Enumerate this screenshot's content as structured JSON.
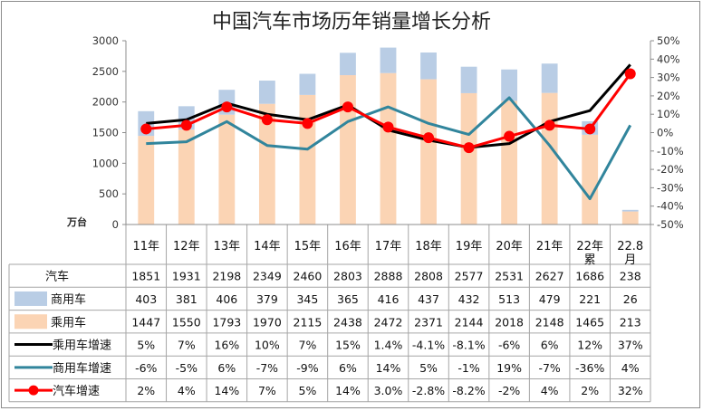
{
  "title": "中国汽车市场历年销量增长分析",
  "unit_label": "万台",
  "colors": {
    "commercial_bar": "#b9cde5",
    "passenger_bar": "#fbd4b4",
    "passenger_growth": "#000000",
    "commercial_growth": "#31859c",
    "total_growth": "#ff0000",
    "grid_lines": "#a6a6a6"
  },
  "chart_data": {
    "type": "bar",
    "title": "中国汽车市场历年销量增长分析",
    "categories": [
      "11年",
      "12年",
      "13年",
      "14年",
      "15年",
      "16年",
      "17年",
      "18年",
      "19年",
      "20年",
      "21年",
      "22年累",
      "22.8月"
    ],
    "left_axis": {
      "unit": "万台",
      "ylim": [
        0,
        3000
      ],
      "ticks": [
        "3000",
        "2500",
        "2000",
        "1500",
        "1000",
        "500",
        "0"
      ]
    },
    "right_axis": {
      "ylim": [
        -50,
        50
      ],
      "ticks": [
        "50%",
        "40%",
        "30%",
        "20%",
        "10%",
        "0%",
        "-10%",
        "-20%",
        "-30%",
        "-40%",
        "-50%"
      ]
    },
    "bar_series": [
      {
        "name": "乘用车",
        "color": "#fbd4b4",
        "values": [
          1447,
          1550,
          1793,
          1970,
          2115,
          2438,
          2472,
          2371,
          2144,
          2018,
          2148,
          1465,
          213
        ]
      },
      {
        "name": "商用车",
        "color": "#b9cde5",
        "values": [
          403,
          381,
          406,
          379,
          345,
          365,
          416,
          437,
          432,
          513,
          479,
          221,
          26
        ]
      }
    ],
    "line_series": [
      {
        "name": "乘用车增速",
        "color": "#000000",
        "markers": false,
        "values": [
          5,
          7,
          16,
          10,
          7,
          15,
          1.4,
          -4.1,
          -8.1,
          -6,
          6,
          12,
          37
        ]
      },
      {
        "name": "商用车增速",
        "color": "#31859c",
        "markers": false,
        "values": [
          -6,
          -5,
          6,
          -7,
          -9,
          6,
          14,
          5,
          -1,
          19,
          -7,
          -36,
          4
        ]
      },
      {
        "name": "汽车增速",
        "color": "#ff0000",
        "markers": true,
        "values": [
          2,
          4,
          14,
          7,
          5,
          14,
          3.0,
          -2.8,
          -8.2,
          -2,
          4,
          2,
          32
        ]
      }
    ],
    "table_rows": [
      {
        "label": "汽车",
        "legend": "none",
        "cells": [
          "1851",
          "1931",
          "2198",
          "2349",
          "2460",
          "2803",
          "2888",
          "2808",
          "2577",
          "2531",
          "2627",
          "1686",
          "238"
        ]
      },
      {
        "label": "商用车",
        "legend": "bar-commercial",
        "cells": [
          "403",
          "381",
          "406",
          "379",
          "345",
          "365",
          "416",
          "437",
          "432",
          "513",
          "479",
          "221",
          "26"
        ]
      },
      {
        "label": "乘用车",
        "legend": "bar-passenger",
        "cells": [
          "1447",
          "1550",
          "1793",
          "1970",
          "2115",
          "2438",
          "2472",
          "2371",
          "2144",
          "2018",
          "2148",
          "1465",
          "213"
        ]
      },
      {
        "label": "乘用车增速",
        "legend": "line-passenger",
        "cells": [
          "5%",
          "7%",
          "16%",
          "10%",
          "7%",
          "15%",
          "1.4%",
          "-4.1%",
          "-8.1%",
          "-6%",
          "6%",
          "12%",
          "37%"
        ]
      },
      {
        "label": "商用车增速",
        "legend": "line-commercial",
        "cells": [
          "-6%",
          "-5%",
          "6%",
          "-7%",
          "-9%",
          "6%",
          "14%",
          "5%",
          "-1%",
          "19%",
          "-7%",
          "-36%",
          "4%"
        ]
      },
      {
        "label": "汽车增速",
        "legend": "line-total",
        "cells": [
          "2%",
          "4%",
          "14%",
          "7%",
          "5%",
          "14%",
          "3.0%",
          "-2.8%",
          "-8.2%",
          "-2%",
          "4%",
          "2%",
          "32%"
        ]
      }
    ]
  }
}
